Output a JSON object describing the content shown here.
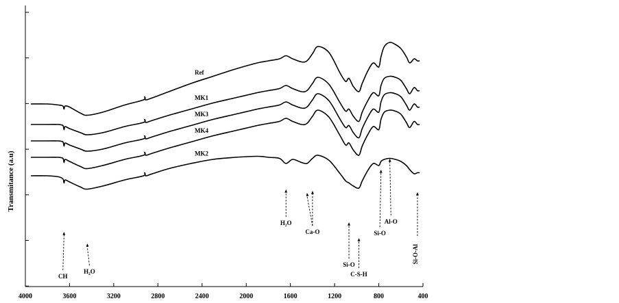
{
  "chart_data": {
    "type": "line",
    "ylabel": "Transmitance (a.u)",
    "xlim": [
      4000,
      400
    ],
    "x_reversed": true,
    "xticks": [
      4000,
      3600,
      3200,
      2800,
      2400,
      2000,
      1600,
      1200,
      800,
      400
    ],
    "grid": false,
    "legend": "none",
    "series": [
      {
        "name": "Ref",
        "x": [
          3950,
          3800,
          3700,
          3660,
          3650,
          3640,
          3600,
          3500,
          3440,
          3300,
          3100,
          2930,
          2920,
          2910,
          2850,
          2700,
          2500,
          2300,
          2100,
          1900,
          1800,
          1700,
          1640,
          1580,
          1500,
          1450,
          1400,
          1350,
          1250,
          1150,
          1100,
          1070,
          1030,
          980,
          950,
          900,
          850,
          800,
          780,
          750,
          700,
          650,
          600,
          550,
          520,
          480,
          450,
          430
        ],
        "y": [
          0.3,
          0.3,
          0.29,
          0.28,
          0.25,
          0.28,
          0.27,
          0.21,
          0.19,
          0.22,
          0.29,
          0.34,
          0.37,
          0.34,
          0.36,
          0.42,
          0.5,
          0.57,
          0.64,
          0.7,
          0.72,
          0.74,
          0.77,
          0.74,
          0.71,
          0.72,
          0.79,
          0.86,
          0.8,
          0.6,
          0.52,
          0.55,
          0.47,
          0.42,
          0.5,
          0.62,
          0.7,
          0.66,
          0.76,
          0.86,
          0.9,
          0.88,
          0.84,
          0.76,
          0.7,
          0.74,
          0.72,
          0.72
        ]
      },
      {
        "name": "MK1",
        "x": [
          3950,
          3800,
          3700,
          3660,
          3650,
          3640,
          3600,
          3500,
          3440,
          3300,
          3100,
          2930,
          2920,
          2910,
          2850,
          2700,
          2500,
          2300,
          2100,
          1900,
          1800,
          1700,
          1640,
          1580,
          1500,
          1450,
          1400,
          1350,
          1250,
          1150,
          1100,
          1070,
          1030,
          980,
          950,
          900,
          850,
          800,
          780,
          750,
          700,
          650,
          600,
          550,
          520,
          480,
          450,
          430
        ],
        "y": [
          0.1,
          0.1,
          0.1,
          0.09,
          0.05,
          0.08,
          0.06,
          0.02,
          0.0,
          0.02,
          0.08,
          0.12,
          0.15,
          0.12,
          0.14,
          0.19,
          0.25,
          0.31,
          0.36,
          0.41,
          0.43,
          0.45,
          0.48,
          0.45,
          0.42,
          0.43,
          0.5,
          0.56,
          0.49,
          0.31,
          0.23,
          0.25,
          0.18,
          0.13,
          0.22,
          0.33,
          0.41,
          0.38,
          0.48,
          0.55,
          0.57,
          0.56,
          0.53,
          0.45,
          0.4,
          0.46,
          0.43,
          0.43
        ]
      },
      {
        "name": "MK3",
        "x": [
          3950,
          3800,
          3700,
          3660,
          3650,
          3640,
          3600,
          3500,
          3440,
          3300,
          3100,
          2930,
          2920,
          2910,
          2850,
          2700,
          2500,
          2300,
          2100,
          1900,
          1800,
          1700,
          1640,
          1580,
          1500,
          1450,
          1400,
          1350,
          1250,
          1150,
          1100,
          1070,
          1030,
          980,
          950,
          900,
          850,
          800,
          780,
          750,
          700,
          650,
          600,
          550,
          520,
          480,
          450,
          430
        ],
        "y": [
          -0.06,
          -0.06,
          -0.06,
          -0.07,
          -0.11,
          -0.08,
          -0.1,
          -0.14,
          -0.16,
          -0.14,
          -0.08,
          -0.04,
          -0.01,
          -0.04,
          -0.02,
          0.03,
          0.09,
          0.15,
          0.2,
          0.25,
          0.27,
          0.29,
          0.32,
          0.29,
          0.26,
          0.27,
          0.34,
          0.4,
          0.33,
          0.15,
          0.07,
          0.09,
          0.02,
          -0.03,
          0.06,
          0.17,
          0.25,
          0.22,
          0.32,
          0.39,
          0.41,
          0.4,
          0.37,
          0.29,
          0.24,
          0.3,
          0.27,
          0.27
        ]
      },
      {
        "name": "MK4",
        "x": [
          3950,
          3800,
          3700,
          3660,
          3650,
          3640,
          3600,
          3500,
          3440,
          3300,
          3100,
          2930,
          2920,
          2910,
          2850,
          2700,
          2500,
          2300,
          2100,
          1900,
          1800,
          1700,
          1640,
          1580,
          1500,
          1450,
          1400,
          1350,
          1250,
          1150,
          1100,
          1070,
          1030,
          980,
          950,
          900,
          850,
          800,
          780,
          750,
          700,
          650,
          600,
          550,
          520,
          480,
          450,
          430
        ],
        "y": [
          -0.22,
          -0.22,
          -0.22,
          -0.23,
          -0.27,
          -0.24,
          -0.26,
          -0.31,
          -0.33,
          -0.3,
          -0.24,
          -0.2,
          -0.17,
          -0.2,
          -0.18,
          -0.13,
          -0.07,
          -0.01,
          0.04,
          0.09,
          0.11,
          0.13,
          0.16,
          0.13,
          0.1,
          0.11,
          0.18,
          0.24,
          0.17,
          -0.01,
          -0.1,
          -0.08,
          -0.15,
          -0.2,
          -0.11,
          0.0,
          0.08,
          0.05,
          0.15,
          0.22,
          0.24,
          0.23,
          0.2,
          0.12,
          0.07,
          0.13,
          0.1,
          0.1
        ]
      },
      {
        "name": "MK2",
        "x": [
          3950,
          3800,
          3700,
          3660,
          3650,
          3640,
          3600,
          3500,
          3440,
          3300,
          3100,
          2930,
          2920,
          2910,
          2850,
          2700,
          2500,
          2300,
          2100,
          1900,
          1800,
          1700,
          1640,
          1580,
          1500,
          1450,
          1400,
          1350,
          1250,
          1150,
          1100,
          1070,
          1030,
          980,
          950,
          900,
          850,
          800,
          780,
          750,
          700,
          650,
          600,
          550,
          520,
          480,
          450,
          430
        ],
        "y": [
          -0.4,
          -0.4,
          -0.41,
          -0.43,
          -0.47,
          -0.44,
          -0.46,
          -0.51,
          -0.53,
          -0.5,
          -0.44,
          -0.4,
          -0.37,
          -0.4,
          -0.38,
          -0.33,
          -0.28,
          -0.24,
          -0.22,
          -0.21,
          -0.22,
          -0.23,
          -0.28,
          -0.24,
          -0.27,
          -0.28,
          -0.23,
          -0.2,
          -0.25,
          -0.38,
          -0.45,
          -0.47,
          -0.5,
          -0.52,
          -0.45,
          -0.35,
          -0.28,
          -0.3,
          -0.26,
          -0.24,
          -0.23,
          -0.24,
          -0.26,
          -0.3,
          -0.34,
          -0.38,
          -0.37,
          -0.37
        ]
      }
    ],
    "annotations": [
      {
        "label": "CH",
        "x": 3650
      },
      {
        "label": "H₂O",
        "x": 3440
      },
      {
        "label": "H₂O",
        "x": 1640
      },
      {
        "label": "Ca-O",
        "x": 1450
      },
      {
        "label": "Ca-O",
        "x": 1400
      },
      {
        "label": "Si-O",
        "x": 1070
      },
      {
        "label": "C-S-H",
        "x": 980
      },
      {
        "label": "Si-O",
        "x": 780
      },
      {
        "label": "Al-O",
        "x": 700
      },
      {
        "label": "Si-O-Al",
        "x": 450
      }
    ]
  }
}
